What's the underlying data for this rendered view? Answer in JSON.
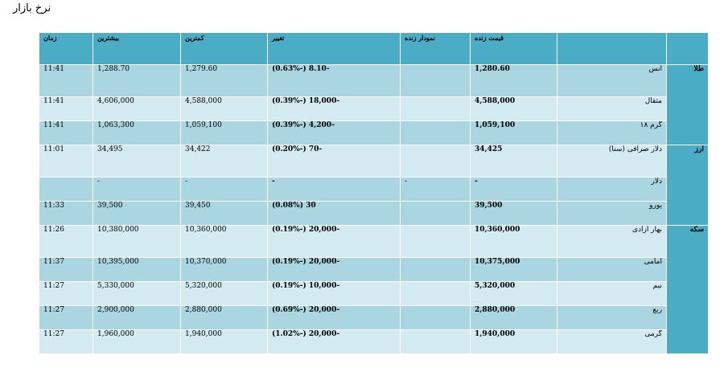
{
  "title": "نرخ بازار",
  "headers": {
    "name": "",
    "live_price": "قیمت زنده",
    "live_chart": "نمودار زنده",
    "change": "تغییر",
    "low": "کمترین",
    "high": "بیشترین",
    "time": "زمان"
  },
  "categories": [
    {
      "label": "طلا",
      "rows": [
        {
          "name": "انس",
          "price": "1,280.60",
          "chart": "",
          "change": "-8.10 (-0.63%)",
          "low": "1,279.60",
          "high": "1,288.70",
          "time": "11:41"
        },
        {
          "name": "مثقال",
          "price": "4,588,000",
          "chart": "",
          "change": "-18,000 (-0.39%)",
          "low": "4,588,000",
          "high": "4,606,000",
          "time": "11:41"
        },
        {
          "name": "گرم ۱۸",
          "price": "1,059,100",
          "chart": "",
          "change": "-4,200 (-0.39%)",
          "low": "1,059,100",
          "high": "1,063,300",
          "time": "11:41"
        }
      ]
    },
    {
      "label": "ارز",
      "rows": [
        {
          "name": "دلار صرافی (سنا)",
          "price": "34,425",
          "chart": "",
          "change": "-70 (-0.20%)",
          "low": "34,422",
          "high": "34,495",
          "time": "11:01"
        },
        {
          "name": "دلار",
          "price": "-",
          "chart": "-",
          "change": "-",
          "low": "-",
          "high": "-",
          "time": ""
        },
        {
          "name": "یورو",
          "price": "39,500",
          "chart": "",
          "change": "30 (0.08%)",
          "low": "39,450",
          "high": "39,500",
          "time": "11:33"
        }
      ]
    },
    {
      "label": "سکه",
      "rows": [
        {
          "name": "بهار آزادی",
          "price": "10,360,000",
          "chart": "",
          "change": "-20,000 (-0.19%)",
          "low": "10,360,000",
          "high": "10,380,000",
          "time": "11:26"
        },
        {
          "name": "امامی",
          "price": "10,375,000",
          "chart": "",
          "change": "-20,000 (-0.19%)",
          "low": "10,370,000",
          "high": "10,395,000",
          "time": "11:37"
        },
        {
          "name": "نیم",
          "price": "5,320,000",
          "chart": "",
          "change": "-10,000 (-0.19%)",
          "low": "5,320,000",
          "high": "5,330,000",
          "time": "11:27"
        },
        {
          "name": "ربع",
          "price": "2,880,000",
          "chart": "",
          "change": "-20,000 (-0.69%)",
          "low": "2,880,000",
          "high": "2,900,000",
          "time": "11:27"
        },
        {
          "name": "گرمی",
          "price": "1,940,000",
          "chart": "",
          "change": "-20,000 (-1.02%)",
          "low": "1,940,000",
          "high": "1,960,000",
          "time": "11:27"
        }
      ]
    }
  ]
}
